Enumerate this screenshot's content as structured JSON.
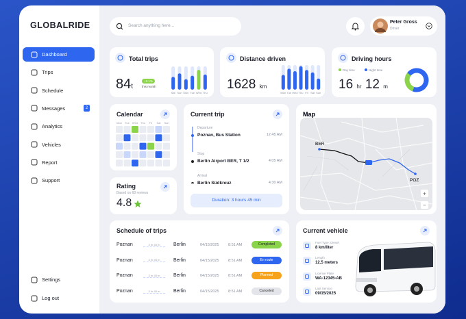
{
  "sidebar": {
    "logo": "GLOBALRIDE",
    "menu": [
      {
        "label": "Dashboard"
      },
      {
        "label": "Trips"
      },
      {
        "label": "Schedule"
      },
      {
        "label": "Messages",
        "badge": 2
      },
      {
        "label": "Analytics"
      },
      {
        "label": "Vehicles"
      },
      {
        "label": "Report"
      },
      {
        "label": "Support"
      }
    ],
    "footer": [
      {
        "label": "Settings"
      },
      {
        "label": "Log out"
      }
    ]
  },
  "header": {
    "search_placeholder": "Search anything here...",
    "user": {
      "name": "Peter Gross",
      "role": "Driver"
    }
  },
  "total_trips": {
    "title": "Total trips",
    "value": 84,
    "unit": "t",
    "change": "+2.1%",
    "change_note": "this month",
    "chart": {
      "type": "bar",
      "categories": [
        "Sat",
        "Sun",
        "Mon",
        "Tue",
        "Wed",
        "Thu"
      ],
      "values": [
        55,
        70,
        45,
        60,
        85,
        65
      ],
      "colors": [
        "#2f66f0",
        "#2f66f0",
        "#2f66f0",
        "#2f66f0",
        "#8bd34a",
        "#2f66f0"
      ],
      "ylim": [
        0,
        100
      ]
    }
  },
  "distance_driven": {
    "title": "Distance driven",
    "value": 1628,
    "unit": "km",
    "chart": {
      "type": "bar",
      "categories": [
        "Mon",
        "Tue",
        "Wed",
        "Thu",
        "Fri",
        "Sat",
        "Sun"
      ],
      "values": [
        60,
        85,
        75,
        95,
        80,
        70,
        45
      ],
      "colors": [
        "#2f66f0",
        "#2f66f0",
        "#2f66f0",
        "#2f66f0",
        "#2f66f0",
        "#2f66f0",
        "#2f66f0"
      ],
      "ylim": [
        0,
        100
      ]
    }
  },
  "driving_hours": {
    "title": "Driving hours",
    "hours": 16,
    "hours_unit": "hr",
    "minutes": 12,
    "minutes_unit": "m",
    "chart": {
      "type": "pie",
      "categories": [
        "Day time",
        "Night time"
      ],
      "values": [
        30,
        70
      ],
      "colors": [
        "#8bd34a",
        "#2f66f0"
      ]
    }
  },
  "calendar": {
    "title": "Calendar",
    "weekdays": [
      "Mon",
      "Tue",
      "Wed",
      "Thu",
      "Fri",
      "Sat",
      "Sun"
    ]
  },
  "rating": {
    "title": "Rating",
    "subtitle": "Based on 68 reviews",
    "value": 4.8
  },
  "current_trip": {
    "title": "Current trip",
    "stops": [
      {
        "label": "Departure",
        "place": "Poznan, Bus Station",
        "time": "12:45 AM"
      },
      {
        "label": "Stop",
        "place": "Berlin Airport BER, T 1/2",
        "time": "4:05 AM"
      },
      {
        "label": "Arrival",
        "place": "Berlin Südkreuz",
        "time": "4:30 AM"
      }
    ],
    "duration": "Duration: 3 hours 45 min"
  },
  "map": {
    "title": "Map",
    "labels": [
      "BER",
      "POZ"
    ],
    "zoom": [
      "+",
      "−"
    ]
  },
  "schedule": {
    "title": "Schedule of trips",
    "rows": [
      {
        "from": "Poznan",
        "duration": "3 hr 45 m",
        "to": "Berlin",
        "date": "04/15/2025",
        "time": "8:51 AM",
        "status": "Completed"
      },
      {
        "from": "Poznan",
        "duration": "3 hr 45 m",
        "to": "Berlin",
        "date": "04/15/2025",
        "time": "8:51 AM",
        "status": "En route"
      },
      {
        "from": "Poznan",
        "duration": "3 hr 45 m",
        "to": "Berlin",
        "date": "04/15/2025",
        "time": "8:51 AM",
        "status": "Planned"
      },
      {
        "from": "Poznan",
        "duration": "3 hr 45 m",
        "to": "Berlin",
        "date": "04/15/2025",
        "time": "8:51 AM",
        "status": "Canceled"
      }
    ]
  },
  "vehicle": {
    "title": "Current vehicle",
    "specs": [
      {
        "label": "Fuel Type: Diesel",
        "value": "8 km/liter"
      },
      {
        "label": "Length",
        "value": "12.5 meters"
      },
      {
        "label": "License Plate",
        "value": "WA-12345-AB"
      },
      {
        "label": "Last Service",
        "value": "09/15/2025"
      }
    ]
  }
}
